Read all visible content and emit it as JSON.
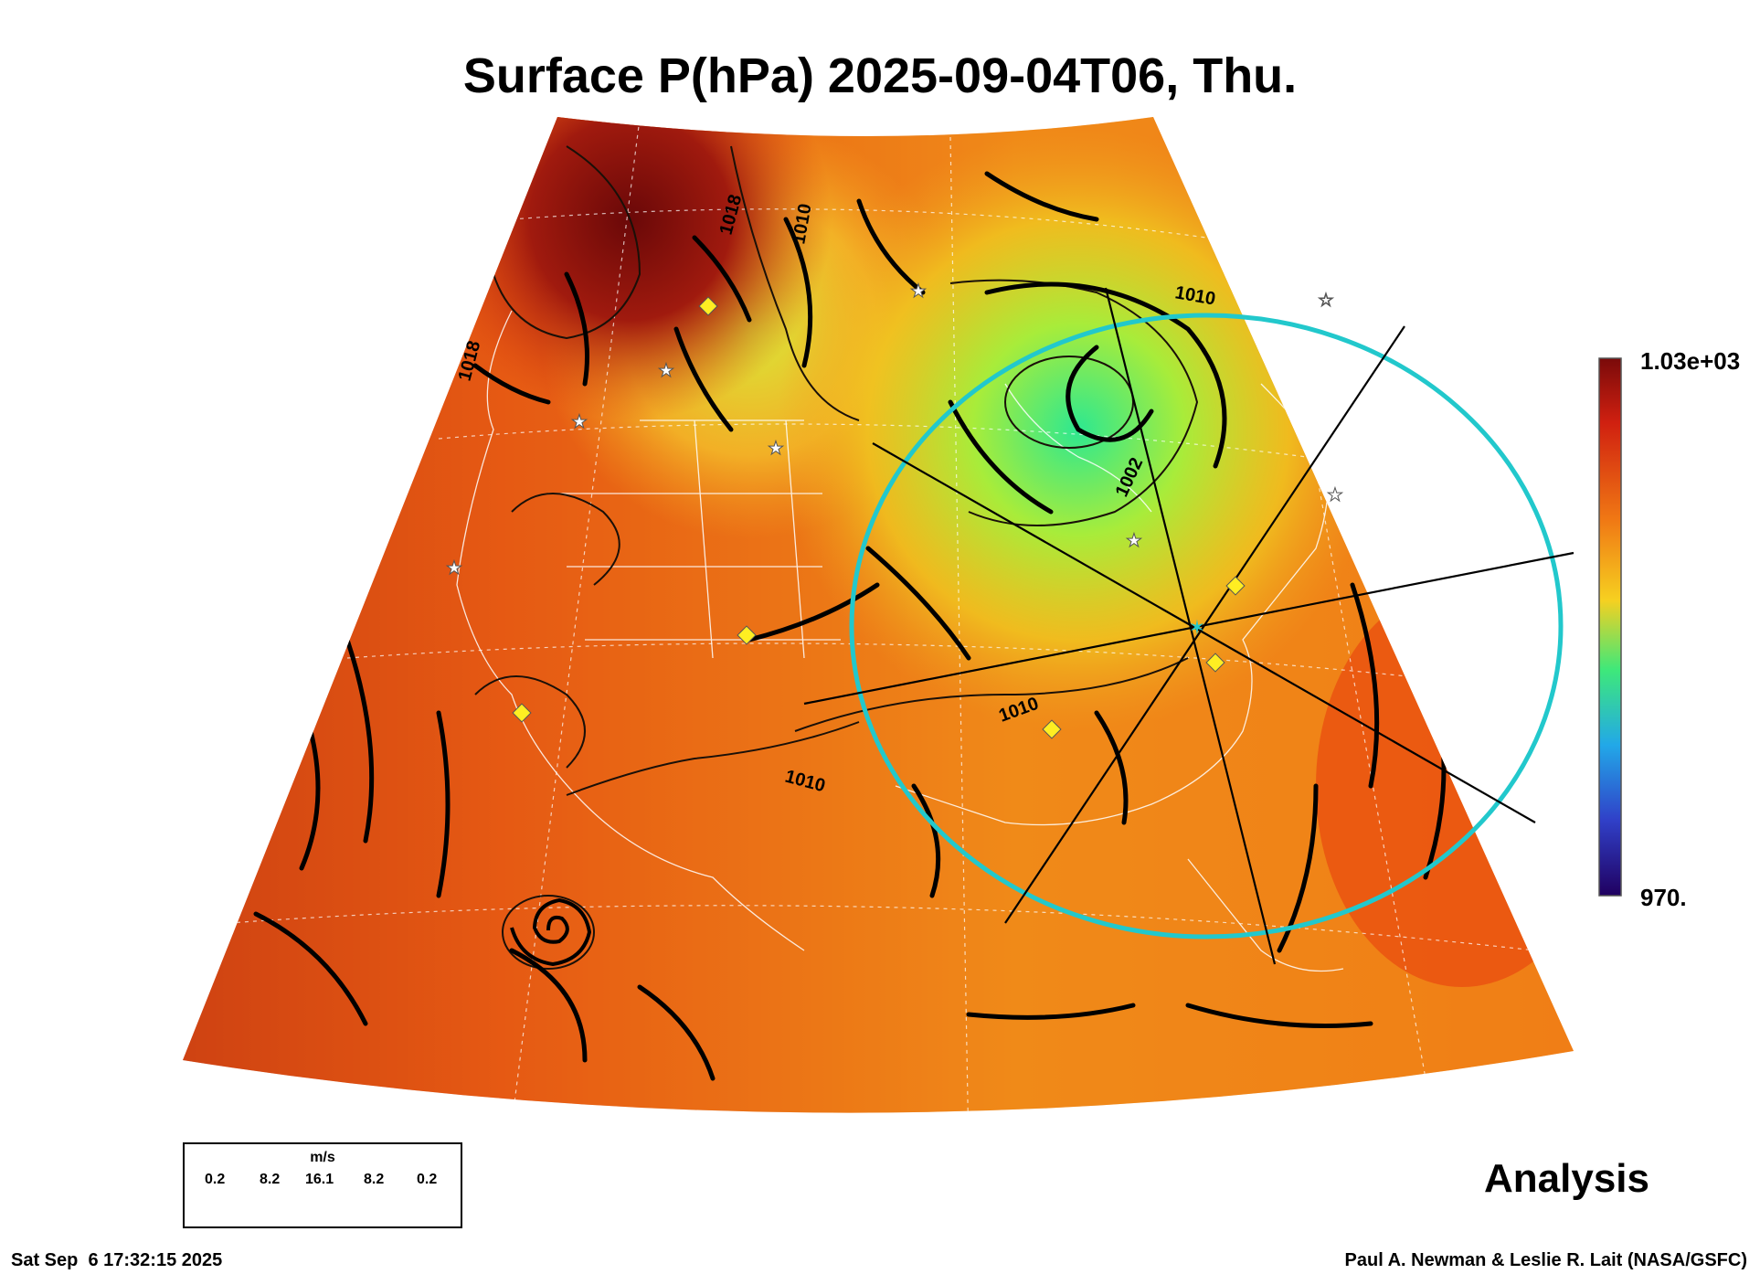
{
  "title": "Surface P(hPa) 2025-09-04T06, Thu.",
  "colorbar": {
    "max_label": "1.03e+03",
    "min_label": "970.",
    "range": [
      970,
      1030
    ]
  },
  "contour_labels": [
    "1018",
    "1010",
    "1010",
    "1018",
    "1002",
    "1010",
    "1010"
  ],
  "wind_legend": {
    "unit": "m/s",
    "values": [
      "0.2",
      "8.2",
      "16.1",
      "8.2",
      "0.2"
    ]
  },
  "analysis_label": "Analysis",
  "footer": {
    "timestamp": "Sat Sep  6 17:32:15 2025",
    "credit": "Paul A. Newman & Leslie R. Lait (NASA/GSFC)"
  },
  "colors": {
    "high": "#7a0a0a",
    "mid": "#f07814",
    "low": "#3ee87a",
    "range_ring": "#22c8cc"
  },
  "icons": [
    "star-marker-icon",
    "diamond-marker-icon",
    "storm-center-icon"
  ]
}
